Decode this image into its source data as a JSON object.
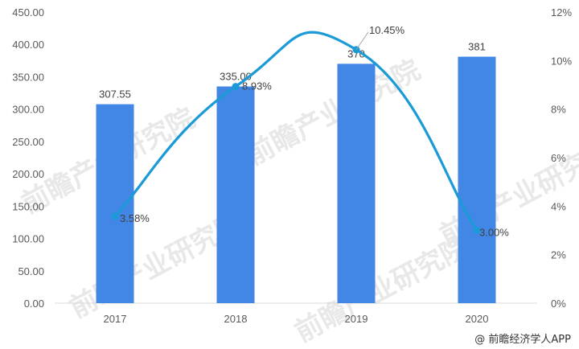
{
  "chart_data": {
    "type": "bar",
    "categories": [
      "2017",
      "2018",
      "2019",
      "2020"
    ],
    "series": [
      {
        "type": "bar",
        "axis": "left",
        "values": [
          307.55,
          335.0,
          370,
          381
        ],
        "labels": [
          "307.55",
          "335.00",
          "370",
          "381"
        ]
      },
      {
        "type": "line",
        "axis": "right",
        "smooth": true,
        "values": [
          3.58,
          8.93,
          10.45,
          3.0
        ],
        "labels": [
          "3.58%",
          "8.93%",
          "10.45%",
          "3.00%"
        ]
      }
    ],
    "ylim": [
      0,
      450
    ],
    "y2lim": [
      0,
      12
    ],
    "y_ticks": [
      "0.00",
      "50.00",
      "100.00",
      "150.00",
      "200.00",
      "250.00",
      "300.00",
      "350.00",
      "400.00",
      "450.00"
    ],
    "y2_ticks": [
      "0%",
      "2%",
      "4%",
      "6%",
      "8%",
      "10%",
      "12%"
    ],
    "grid": false,
    "colors": {
      "bar": "#4287e6",
      "line": "#1a9ad6"
    }
  },
  "watermark": "前瞻产业研究院",
  "footer": {
    "credit": "@ 前瞻经济学人APP"
  }
}
